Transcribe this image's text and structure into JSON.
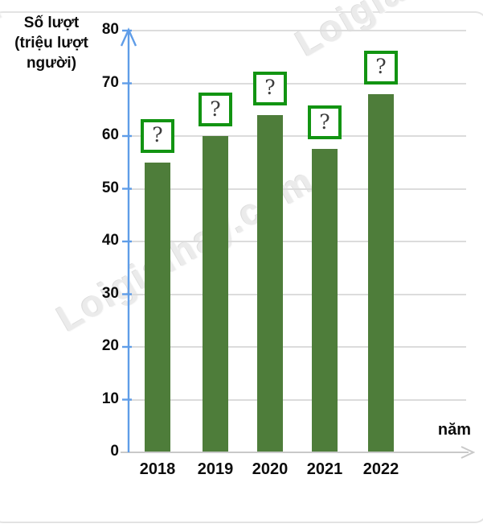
{
  "watermark": {
    "text": "Loigiaihay.com"
  },
  "chart_data": {
    "type": "bar",
    "title": "",
    "y_axis_title": "Số lượt\n(triệu lượt\nngười)",
    "x_axis_title": "năm",
    "categories": [
      "2018",
      "2019",
      "2020",
      "2021",
      "2022"
    ],
    "values": [
      55,
      60,
      64,
      57.5,
      68
    ],
    "bar_labels": [
      "?",
      "?",
      "?",
      "?",
      "?"
    ],
    "y_ticks": [
      0,
      10,
      20,
      30,
      40,
      50,
      60,
      70,
      80
    ],
    "ylim": [
      0,
      80
    ],
    "grid": true,
    "legend": "none",
    "colors": {
      "bar": "#4e7d3a",
      "label_box_border": "#129412",
      "y_axis": "#5f9de8",
      "x_axis": "#c9c9c9",
      "gridline": "#dcdcdc",
      "text": "#0d0d0d",
      "watermark": "#ebebeb"
    }
  }
}
